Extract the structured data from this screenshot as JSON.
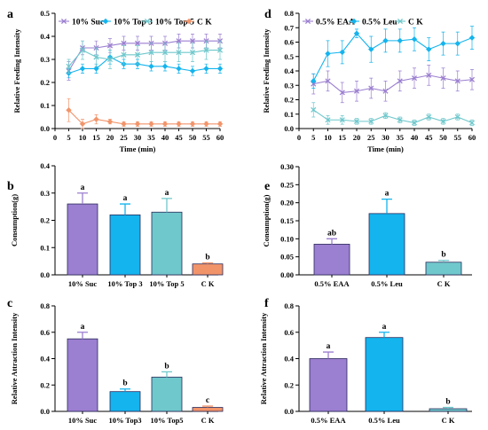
{
  "chart_data": [
    {
      "panel": "a",
      "type": "line",
      "x": [
        5,
        10,
        15,
        20,
        25,
        30,
        35,
        40,
        45,
        50,
        55,
        60
      ],
      "xlabel": "Time (min)",
      "ylabel": "Relative Feeding Intensity",
      "xlim": [
        0,
        60
      ],
      "ylim": [
        0,
        0.5
      ],
      "xticks": [
        0,
        5,
        10,
        15,
        20,
        25,
        30,
        35,
        40,
        45,
        50,
        55,
        60
      ],
      "yticks": [
        0.0,
        0.1,
        0.2,
        0.3,
        0.4,
        0.5
      ],
      "legend_position": "top",
      "series": [
        {
          "name": "10% Suc",
          "color": "#9b7fd0",
          "marker": "x",
          "values": [
            0.25,
            0.35,
            0.35,
            0.36,
            0.37,
            0.37,
            0.37,
            0.37,
            0.38,
            0.38,
            0.38,
            0.38
          ],
          "errors": [
            0.04,
            0.03,
            0.03,
            0.03,
            0.03,
            0.03,
            0.03,
            0.03,
            0.03,
            0.03,
            0.03,
            0.03
          ]
        },
        {
          "name": "10% Top 3",
          "color": "#14b4ee",
          "marker": "diamond",
          "values": [
            0.24,
            0.26,
            0.26,
            0.31,
            0.28,
            0.28,
            0.27,
            0.27,
            0.26,
            0.25,
            0.26,
            0.26
          ],
          "errors": [
            0.02,
            0.02,
            0.02,
            0.03,
            0.02,
            0.02,
            0.02,
            0.02,
            0.02,
            0.02,
            0.02,
            0.02
          ]
        },
        {
          "name": "10% Top 5",
          "color": "#6fc8cc",
          "marker": "x",
          "values": [
            0.27,
            0.34,
            0.31,
            0.3,
            0.32,
            0.32,
            0.33,
            0.33,
            0.33,
            0.33,
            0.34,
            0.34
          ],
          "errors": [
            0.03,
            0.04,
            0.04,
            0.04,
            0.04,
            0.04,
            0.04,
            0.04,
            0.04,
            0.04,
            0.04,
            0.04
          ]
        },
        {
          "name": "C K",
          "color": "#f2946a",
          "marker": "diamond",
          "values": [
            0.08,
            0.02,
            0.04,
            0.03,
            0.02,
            0.02,
            0.02,
            0.02,
            0.02,
            0.02,
            0.02,
            0.02
          ],
          "errors": [
            0.05,
            0.02,
            0.02,
            0.01,
            0.01,
            0.01,
            0.01,
            0.01,
            0.01,
            0.01,
            0.01,
            0.01
          ]
        }
      ]
    },
    {
      "panel": "b",
      "type": "bar",
      "categories": [
        "10% Suc",
        "10% Top 3",
        "10% Top 5",
        "C K"
      ],
      "values": [
        0.26,
        0.22,
        0.23,
        0.04
      ],
      "errors": [
        0.04,
        0.04,
        0.05,
        0.004
      ],
      "labels": [
        "a",
        "a",
        "a",
        "b"
      ],
      "colors": [
        "#9b7fd0",
        "#14b4ee",
        "#6fc8cc",
        "#f2946a"
      ],
      "ylabel": "Consumption(g)",
      "ylim": [
        0,
        0.4
      ],
      "yticks": [
        0.0,
        0.1,
        0.2,
        0.3,
        0.4
      ]
    },
    {
      "panel": "c",
      "type": "bar",
      "categories": [
        "10% Suc",
        "10% Top3",
        "10% Top5",
        "C K"
      ],
      "values": [
        0.55,
        0.15,
        0.26,
        0.03
      ],
      "errors": [
        0.05,
        0.02,
        0.04,
        0.01
      ],
      "labels": [
        "a",
        "b",
        "b",
        "c"
      ],
      "colors": [
        "#9b7fd0",
        "#14b4ee",
        "#6fc8cc",
        "#f2946a"
      ],
      "ylabel": "Relative Attraction Intensity",
      "ylim": [
        0,
        0.8
      ],
      "yticks": [
        0.0,
        0.2,
        0.4,
        0.6,
        0.8
      ]
    },
    {
      "panel": "d",
      "type": "line",
      "x": [
        5,
        10,
        15,
        20,
        25,
        30,
        35,
        40,
        45,
        50,
        55,
        60
      ],
      "xlabel": "Time (min)",
      "ylabel": "Relative Feeding Intensity",
      "xlim": [
        0,
        60
      ],
      "ylim": [
        0,
        0.8
      ],
      "xticks": [
        0,
        5,
        10,
        15,
        20,
        25,
        30,
        35,
        40,
        45,
        50,
        55,
        60
      ],
      "yticks": [
        0.0,
        0.1,
        0.2,
        0.3,
        0.4,
        0.5,
        0.6,
        0.7,
        0.8
      ],
      "legend_position": "top",
      "series": [
        {
          "name": "0.5% EAA",
          "color": "#9b7fd0",
          "marker": "x",
          "values": [
            0.31,
            0.33,
            0.25,
            0.26,
            0.28,
            0.26,
            0.33,
            0.35,
            0.37,
            0.35,
            0.33,
            0.34
          ],
          "errors": [
            0.07,
            0.07,
            0.07,
            0.07,
            0.07,
            0.07,
            0.07,
            0.07,
            0.07,
            0.07,
            0.07,
            0.07
          ]
        },
        {
          "name": "0.5% Leu",
          "color": "#14b4ee",
          "marker": "diamond",
          "values": [
            0.33,
            0.52,
            0.53,
            0.66,
            0.55,
            0.61,
            0.61,
            0.62,
            0.55,
            0.59,
            0.59,
            0.63
          ],
          "errors": [
            0.05,
            0.09,
            0.08,
            0.03,
            0.09,
            0.08,
            0.08,
            0.08,
            0.08,
            0.08,
            0.08,
            0.08
          ]
        },
        {
          "name": "C K",
          "color": "#6fc8cc",
          "marker": "x",
          "values": [
            0.13,
            0.06,
            0.06,
            0.05,
            0.05,
            0.09,
            0.06,
            0.04,
            0.08,
            0.05,
            0.08,
            0.04
          ],
          "errors": [
            0.05,
            0.03,
            0.03,
            0.02,
            0.02,
            0.02,
            0.02,
            0.02,
            0.02,
            0.02,
            0.02,
            0.02
          ]
        }
      ]
    },
    {
      "panel": "e",
      "type": "bar",
      "categories": [
        "0.5% EAA",
        "0.5% Leu",
        "C K"
      ],
      "values": [
        0.085,
        0.17,
        0.035
      ],
      "errors": [
        0.015,
        0.04,
        0.005
      ],
      "labels": [
        "ab",
        "a",
        "b"
      ],
      "colors": [
        "#9b7fd0",
        "#14b4ee",
        "#6fc8cc"
      ],
      "ylabel": "Consumption(g)",
      "ylim": [
        0,
        0.3
      ],
      "yticks": [
        0.0,
        0.05,
        0.1,
        0.15,
        0.2,
        0.25,
        0.3
      ]
    },
    {
      "panel": "f",
      "type": "bar",
      "categories": [
        "0.5% EAA",
        "0.5% Leu",
        "C K"
      ],
      "values": [
        0.4,
        0.56,
        0.02
      ],
      "errors": [
        0.05,
        0.04,
        0.01
      ],
      "labels": [
        "a",
        "a",
        "b"
      ],
      "colors": [
        "#9b7fd0",
        "#14b4ee",
        "#6fc8cc"
      ],
      "ylabel": "Relative Attraction Intensity",
      "ylim": [
        0,
        0.8
      ],
      "yticks": [
        0.0,
        0.2,
        0.4,
        0.6,
        0.8
      ]
    }
  ]
}
